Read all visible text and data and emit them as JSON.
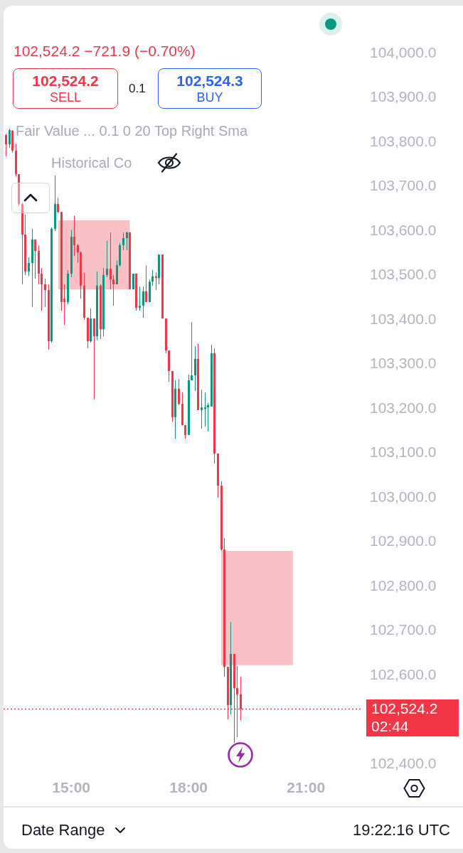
{
  "chart_data": {
    "type": "candlestick",
    "subtitle": "102,524.2 −721.9 (−0.70%)",
    "x": [
      13.333,
      13.417,
      13.5,
      13.583,
      13.667,
      13.75,
      13.833,
      13.917,
      14,
      14.083,
      14.167,
      14.25,
      14.333,
      14.417,
      14.5,
      14.583,
      14.667,
      14.75,
      14.833,
      14.917,
      15,
      15.083,
      15.167,
      15.25,
      15.333,
      15.417,
      15.5,
      15.583,
      15.667,
      15.75,
      15.833,
      15.917,
      16,
      16.083,
      16.167,
      16.25,
      16.333,
      16.417,
      16.5,
      16.583,
      16.667,
      16.75,
      16.833,
      16.917,
      17,
      17.083,
      17.167,
      17.25,
      17.333,
      17.417,
      17.5,
      17.583,
      17.667,
      17.75,
      17.833,
      17.917,
      18,
      18.083,
      18.167,
      18.25,
      18.333,
      18.417,
      18.5,
      18.583,
      18.667,
      18.75,
      18.833,
      18.917,
      19,
      19.083,
      19.167,
      19.25,
      19.333
    ],
    "ohlc": [
      [
        103816,
        103819,
        103768,
        103795
      ],
      [
        103795,
        103830,
        103787,
        103827
      ],
      [
        103826,
        103827,
        103776,
        103781
      ],
      [
        103781,
        103797,
        103723,
        103728
      ],
      [
        103728,
        103728,
        103656,
        103661
      ],
      [
        103661,
        103664,
        103480,
        103592
      ],
      [
        103592,
        103637,
        103501,
        103509
      ],
      [
        103509,
        103541,
        103499,
        103528
      ],
      [
        103528,
        103605,
        103429,
        103581
      ],
      [
        103581,
        103581,
        103493,
        103555
      ],
      [
        103555,
        103568,
        103480,
        103504
      ],
      [
        103504,
        103517,
        103421,
        103480
      ],
      [
        103480,
        103493,
        103429,
        103467
      ],
      [
        103467,
        103480,
        103333,
        103352
      ],
      [
        103352,
        103608,
        103349,
        103605
      ],
      [
        103605,
        103725,
        103600,
        103661
      ],
      [
        103661,
        103675,
        103640,
        103643
      ],
      [
        103643,
        103643,
        103421,
        103440
      ],
      [
        103448,
        103480,
        103389,
        103440
      ],
      [
        103440,
        103512,
        103435,
        103504
      ],
      [
        103504,
        103603,
        103496,
        103587
      ],
      [
        103587,
        103635,
        103544,
        103568
      ],
      [
        103568,
        103571,
        103528,
        103552
      ],
      [
        103552,
        103555,
        103448,
        103477
      ],
      [
        103477,
        103507,
        103400,
        103405
      ],
      [
        103405,
        103405,
        103336,
        103352
      ],
      [
        103352,
        103426,
        103349,
        103403
      ],
      [
        103403,
        103403,
        103221,
        103363
      ],
      [
        103363,
        103509,
        103355,
        103477
      ],
      [
        103477,
        103480,
        103357,
        103379
      ],
      [
        103379,
        103517,
        103363,
        103501
      ],
      [
        103501,
        103578,
        103496,
        103515
      ],
      [
        103515,
        103597,
        103469,
        103491
      ],
      [
        103491,
        103501,
        103432,
        103480
      ],
      [
        103480,
        103534,
        103480,
        103523
      ],
      [
        103523,
        103573,
        103520,
        103568
      ],
      [
        103568,
        103597,
        103557,
        103584
      ],
      [
        103584,
        103598,
        103557,
        103597
      ],
      [
        103597,
        103597,
        103469,
        103469
      ],
      [
        103469,
        103504,
        103469,
        103504
      ],
      [
        103504,
        103504,
        103421,
        103427
      ],
      [
        103427,
        103475,
        103421,
        103432
      ],
      [
        103432,
        103475,
        103405,
        103464
      ],
      [
        103464,
        103523,
        103440,
        103440
      ],
      [
        103440,
        103491,
        103440,
        103486
      ],
      [
        103486,
        103512,
        103477,
        103498
      ],
      [
        103498,
        103507,
        103467,
        103494
      ],
      [
        103494,
        103547,
        103480,
        103547
      ],
      [
        103547,
        103547,
        103403,
        103403
      ],
      [
        103403,
        103403,
        103325,
        103331
      ],
      [
        103331,
        103331,
        103261,
        103285
      ],
      [
        103285,
        103285,
        103171,
        103181
      ],
      [
        103181,
        103264,
        103133,
        103245
      ],
      [
        103245,
        103267,
        103208,
        103211
      ],
      [
        103211,
        103237,
        103163,
        103163
      ],
      [
        103163,
        103163,
        103133,
        103141
      ],
      [
        103141,
        103277,
        103141,
        103264
      ],
      [
        103264,
        103395,
        103264,
        103275
      ],
      [
        103275,
        103341,
        103240,
        103312
      ],
      [
        103312,
        103347,
        103197,
        103197
      ],
      [
        103197,
        103243,
        103155,
        103203
      ],
      [
        103200,
        103237,
        103160,
        103203
      ],
      [
        103203,
        103213,
        103149,
        103208
      ],
      [
        103205,
        103344,
        103205,
        103325
      ],
      [
        103325,
        103336,
        103077,
        103099
      ],
      [
        103099,
        103099,
        103000,
        103027
      ],
      [
        103027,
        103037,
        102880,
        102883
      ],
      [
        102883,
        102909,
        102597,
        102619
      ],
      [
        102619,
        102619,
        102501,
        102533
      ],
      [
        102533,
        102720,
        102512,
        102648
      ],
      [
        102648,
        102648,
        102448,
        102571
      ],
      [
        102571,
        102621,
        102461,
        102557
      ],
      [
        102557,
        102597,
        102499,
        102524.2
      ]
    ],
    "colors": [
      "#f23645",
      "#089981",
      "#f23645",
      "#f23645",
      "#f23645",
      "#f23645",
      "#f23645",
      "#089981",
      "#089981",
      "#f23645",
      "#f23645",
      "#f23645",
      "#f23645",
      "#f23645",
      "#089981",
      "#089981",
      "#f23645",
      "#f23645",
      "#f23645",
      "#089981",
      "#089981",
      "#f23645",
      "#f23645",
      "#f23645",
      "#f23645",
      "#f23645",
      "#089981",
      "#f23645",
      "#089981",
      "#f23645",
      "#089981",
      "#089981",
      "#f23645",
      "#f23645",
      "#089981",
      "#089981",
      "#089981",
      "#089981",
      "#f23645",
      "#089981",
      "#f23645",
      "#089981",
      "#089981",
      "#f23645",
      "#089981",
      "#089981",
      "#f23645",
      "#089981",
      "#f23645",
      "#f23645",
      "#f23645",
      "#f23645",
      "#089981",
      "#f23645",
      "#f23645",
      "#f23645",
      "#089981",
      "#089981",
      "#089981",
      "#f23645",
      "#089981",
      "#089981",
      "#089981",
      "#089981",
      "#f23645",
      "#f23645",
      "#f23645",
      "#f23645",
      "#f23645",
      "#089981",
      "#f23645",
      "#f23645",
      "#f23645"
    ],
    "series": [
      {
        "type": "line",
        "color": "#f9c1c6",
        "x": [
          14.667,
          16.5
        ],
        "values": [
          null,
          null
        ],
        "lower": [
          103469,
          103469
        ],
        "upper": [
          103624,
          103624
        ]
      },
      {
        "type": "line",
        "color": "#f9c1c6",
        "x": [
          18.833,
          20.667
        ],
        "values": [
          null,
          null
        ],
        "lower": [
          102623,
          102623
        ],
        "upper": [
          102880,
          102880
        ]
      }
    ],
    "xlim": [
      13.27,
      22.45
    ],
    "xticks": [
      {
        "value": 15,
        "label": "15:00"
      },
      {
        "value": 18,
        "label": "18:00"
      },
      {
        "value": 21,
        "label": "21:00"
      }
    ],
    "ylim": [
      102400,
      104000
    ],
    "yticks": [
      {
        "value": 102400,
        "label": "102,400.0"
      },
      {
        "value": 102600,
        "label": "102,600.0"
      },
      {
        "value": 102700,
        "label": "102,700.0"
      },
      {
        "value": 102800,
        "label": "102,800.0"
      },
      {
        "value": 102900,
        "label": "102,900.0"
      },
      {
        "value": 103000,
        "label": "103,000.0"
      },
      {
        "value": 103100,
        "label": "103,100.0"
      },
      {
        "value": 103200,
        "label": "103,200.0"
      },
      {
        "value": 103300,
        "label": "103,300.0"
      },
      {
        "value": 103400,
        "label": "103,400.0"
      },
      {
        "value": 103500,
        "label": "103,500.0"
      },
      {
        "value": 103600,
        "label": "103,600.0"
      },
      {
        "value": 103700,
        "label": "103,700.0"
      },
      {
        "value": 103800,
        "label": "103,800.0"
      },
      {
        "value": 103900,
        "label": "103,900.0"
      },
      {
        "value": 104000,
        "label": "104,000.0"
      }
    ],
    "ref_lines": [
      {
        "axis": "y",
        "value": 102524.2,
        "label": "102,524.2",
        "color": "#f23645",
        "line_style": "dotted"
      }
    ],
    "annotations": [
      "102,524.2",
      "SELL",
      "0.1",
      "102,524.3",
      "BUY",
      "Fair Value ... 0.1 0 20 Top Right Sma",
      "Historical Co",
      "02:44",
      "Date Range",
      "19:22:16 UTC"
    ]
  }
}
